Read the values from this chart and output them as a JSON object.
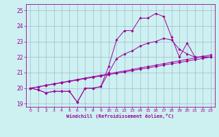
{
  "title": "",
  "xlabel": "Windchill (Refroidissement éolien,°C)",
  "background_color": "#cdf0f0",
  "line_color": "#990099",
  "grid_color": "#99aacc",
  "ylim": [
    18.8,
    25.4
  ],
  "xlim": [
    -0.5,
    23.5
  ],
  "yticks": [
    19,
    20,
    21,
    22,
    23,
    24,
    25
  ],
  "xticks": [
    0,
    1,
    2,
    3,
    4,
    5,
    6,
    7,
    8,
    9,
    10,
    11,
    12,
    13,
    14,
    15,
    16,
    17,
    18,
    19,
    20,
    21,
    22,
    23
  ],
  "lines": [
    {
      "x": [
        0,
        1,
        2,
        3,
        4,
        5,
        6,
        7,
        8,
        9,
        10,
        11,
        12,
        13,
        14,
        15,
        16,
        17,
        18,
        19,
        20,
        21,
        22,
        23
      ],
      "y": [
        20.0,
        19.9,
        19.7,
        19.8,
        19.8,
        19.8,
        19.1,
        20.0,
        20.0,
        20.1,
        21.4,
        23.1,
        23.7,
        23.7,
        24.5,
        24.5,
        24.8,
        24.6,
        23.3,
        22.0,
        22.9,
        22.0,
        22.0,
        22.0
      ],
      "marker": true
    },
    {
      "x": [
        0,
        1,
        2,
        3,
        4,
        5,
        6,
        7,
        8,
        9,
        10,
        11,
        12,
        13,
        14,
        15,
        16,
        17,
        18,
        19,
        20,
        21,
        22,
        23
      ],
      "y": [
        20.0,
        19.9,
        19.7,
        19.8,
        19.8,
        19.8,
        19.1,
        20.0,
        20.0,
        20.1,
        21.0,
        21.9,
        22.2,
        22.4,
        22.7,
        22.9,
        23.0,
        23.2,
        23.1,
        22.5,
        22.2,
        22.0,
        22.0,
        22.0
      ],
      "marker": true
    },
    {
      "x": [
        0,
        1,
        2,
        3,
        4,
        5,
        6,
        7,
        8,
        9,
        10,
        11,
        12,
        13,
        14,
        15,
        16,
        17,
        18,
        19,
        20,
        21,
        22,
        23
      ],
      "y": [
        20.0,
        20.08,
        20.17,
        20.26,
        20.35,
        20.43,
        20.52,
        20.61,
        20.7,
        20.78,
        20.87,
        20.96,
        21.04,
        21.13,
        21.22,
        21.3,
        21.39,
        21.48,
        21.57,
        21.65,
        21.74,
        21.83,
        21.91,
        22.0
      ],
      "marker": true
    },
    {
      "x": [
        0,
        1,
        2,
        3,
        4,
        5,
        6,
        7,
        8,
        9,
        10,
        11,
        12,
        13,
        14,
        15,
        16,
        17,
        18,
        19,
        20,
        21,
        22,
        23
      ],
      "y": [
        20.0,
        20.09,
        20.19,
        20.28,
        20.37,
        20.46,
        20.56,
        20.65,
        20.74,
        20.83,
        20.93,
        21.02,
        21.11,
        21.2,
        21.3,
        21.39,
        21.48,
        21.57,
        21.67,
        21.76,
        21.85,
        21.94,
        22.04,
        22.13
      ],
      "marker": true
    }
  ]
}
